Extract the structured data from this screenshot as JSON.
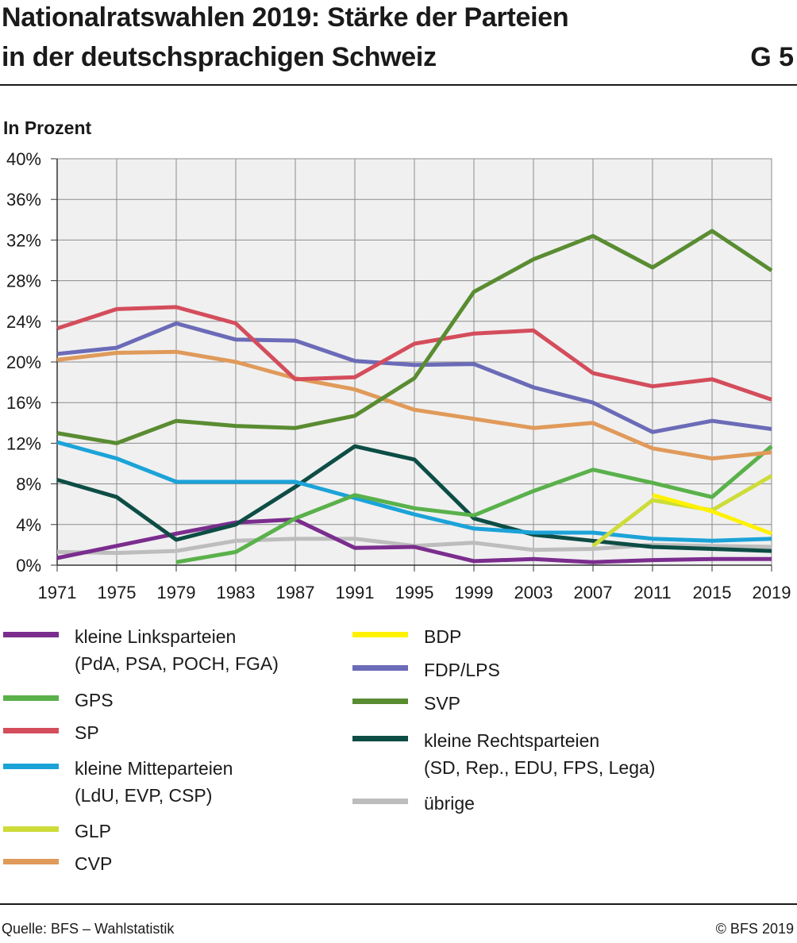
{
  "header": {
    "title_line1": "Nationalratswahlen 2019: Stärke der Parteien",
    "title_line2": "in der deutschsprachigen Schweiz",
    "chart_id": "G 5",
    "unit": "In Prozent"
  },
  "footer": {
    "source": "Quelle: BFS – Wahlstatistik",
    "copyright": "© BFS 2019"
  },
  "chart_data": {
    "type": "line",
    "x": [
      1971,
      1975,
      1979,
      1983,
      1987,
      1991,
      1995,
      1999,
      2003,
      2007,
      2011,
      2015,
      2019
    ],
    "x_tick_labels": [
      "1971",
      "1975",
      "1979",
      "1983",
      "1987",
      "1991",
      "1995",
      "1999",
      "2003",
      "2007",
      "2011",
      "2015",
      "2019"
    ],
    "ylim": [
      0,
      40
    ],
    "y_ticks": [
      0,
      4,
      8,
      12,
      16,
      20,
      24,
      28,
      32,
      36,
      40
    ],
    "y_tick_labels": [
      "0%",
      "4%",
      "8%",
      "12%",
      "16%",
      "20%",
      "24%",
      "28%",
      "32%",
      "36%",
      "40%"
    ],
    "grid": true,
    "legend_position": "bottom",
    "series": [
      {
        "name": "übrige",
        "color": "#bdbdbd",
        "values": [
          1.3,
          1.2,
          1.4,
          2.4,
          2.6,
          2.6,
          1.9,
          2.2,
          1.5,
          1.6,
          2.0,
          1.9,
          1.8
        ]
      },
      {
        "name": "kleine Linksparteien (PdA, PSA, POCH, FGA)",
        "label_lines": [
          "kleine Linksparteien",
          "(PdA, PSA, POCH, FGA)"
        ],
        "color": "#7b2d8e",
        "values": [
          0.7,
          1.9,
          3.1,
          4.2,
          4.5,
          1.7,
          1.8,
          0.4,
          0.6,
          0.3,
          0.5,
          0.6,
          0.6
        ]
      },
      {
        "name": "kleine Rechtsparteien (SD, Rep., EDU, FPS, Lega)",
        "label_lines": [
          "kleine Rechtsparteien",
          "(SD, Rep., EDU, FPS, Lega)"
        ],
        "color": "#0d4d45",
        "values": [
          8.4,
          6.7,
          2.5,
          4.0,
          7.7,
          11.7,
          10.4,
          4.6,
          3.0,
          2.4,
          1.8,
          1.6,
          1.4
        ]
      },
      {
        "name": "kleine Mitteparteien (LdU, EVP, CSP)",
        "label_lines": [
          "kleine Mitteparteien",
          "(LdU, EVP, CSP)"
        ],
        "color": "#1ba3d8",
        "values": [
          12.1,
          10.5,
          8.2,
          8.2,
          8.2,
          6.6,
          5.0,
          3.6,
          3.2,
          3.2,
          2.6,
          2.4,
          2.6
        ]
      },
      {
        "name": "GPS",
        "color": "#5ab14b",
        "values": [
          null,
          null,
          0.3,
          1.3,
          4.6,
          6.9,
          5.6,
          4.9,
          7.3,
          9.4,
          8.1,
          6.7,
          11.7
        ]
      },
      {
        "name": "GLP",
        "color": "#cddc39",
        "values": [
          null,
          null,
          null,
          null,
          null,
          null,
          null,
          null,
          null,
          1.9,
          6.4,
          5.4,
          8.8
        ]
      },
      {
        "name": "BDP",
        "color": "#fff200",
        "values": [
          null,
          null,
          null,
          null,
          null,
          null,
          null,
          null,
          null,
          null,
          6.9,
          5.3,
          3.1
        ]
      },
      {
        "name": "CVP",
        "color": "#e09a5a",
        "values": [
          20.2,
          20.9,
          21.0,
          20.0,
          18.4,
          17.3,
          15.3,
          14.4,
          13.5,
          14.0,
          11.5,
          10.5,
          11.1
        ]
      },
      {
        "name": "FDP/LPS",
        "color": "#6b6bb8",
        "values": [
          20.8,
          21.4,
          23.8,
          22.2,
          22.1,
          20.1,
          19.7,
          19.8,
          17.5,
          16.0,
          13.1,
          14.2,
          13.4
        ]
      },
      {
        "name": "SP",
        "color": "#d44d5c",
        "values": [
          23.3,
          25.2,
          25.4,
          23.8,
          18.3,
          18.5,
          21.8,
          22.8,
          23.1,
          18.9,
          17.6,
          18.3,
          16.3
        ]
      },
      {
        "name": "SVP",
        "color": "#5a8c32",
        "values": [
          13.0,
          12.0,
          14.2,
          13.7,
          13.5,
          14.7,
          18.4,
          26.9,
          30.1,
          32.4,
          29.3,
          32.9,
          29.0
        ]
      }
    ]
  },
  "legend": {
    "col1": [
      "kleine Linksparteien (PdA, PSA, POCH, FGA)",
      "GPS",
      "SP",
      "kleine Mitteparteien (LdU, EVP, CSP)",
      "GLP",
      "CVP"
    ],
    "col2": [
      "BDP",
      "FDP/LPS",
      "SVP",
      "kleine Rechtsparteien (SD, Rep., EDU, FPS, Lega)",
      "übrige"
    ]
  }
}
